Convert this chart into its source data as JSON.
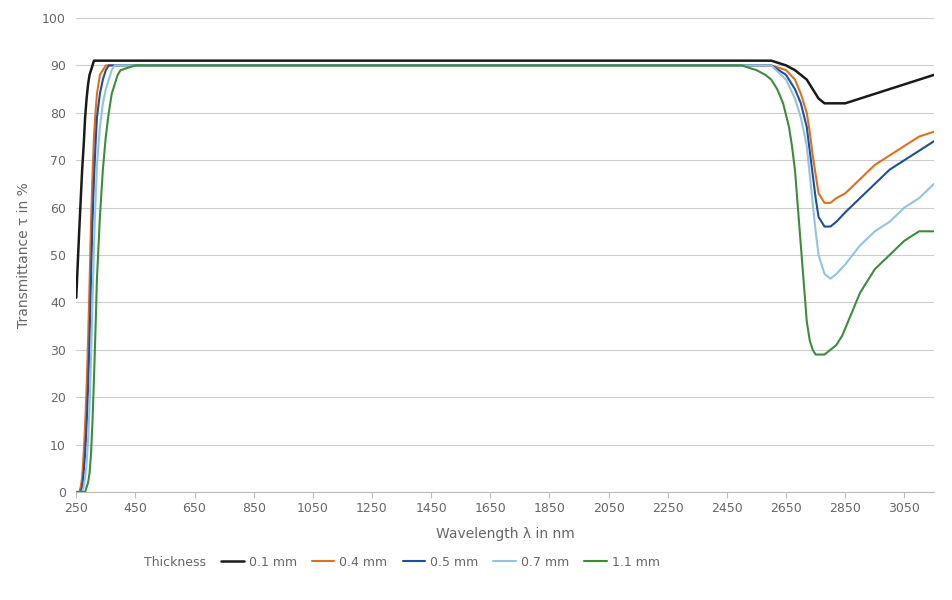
{
  "title": "",
  "xlabel": "Wavelength λ in nm",
  "ylabel": "Transmittance τ in %",
  "xlim": [
    250,
    3150
  ],
  "ylim": [
    0,
    100
  ],
  "xticks": [
    250,
    450,
    650,
    850,
    1050,
    1250,
    1450,
    1650,
    1850,
    2050,
    2250,
    2450,
    2650,
    2850,
    3050
  ],
  "yticks": [
    0,
    10,
    20,
    30,
    40,
    50,
    60,
    70,
    80,
    90,
    100
  ],
  "background_color": "#ffffff",
  "grid_color": "#cccccc",
  "legend_label": "Thickness",
  "series": [
    {
      "label": "0.1 mm",
      "color": "#1a1a1a",
      "linewidth": 1.8,
      "wavelengths": [
        250,
        260,
        270,
        275,
        280,
        285,
        290,
        295,
        300,
        305,
        310,
        315,
        320,
        330,
        340,
        350,
        360,
        370,
        380,
        390,
        400,
        450,
        500,
        600,
        800,
        1000,
        1200,
        1400,
        1600,
        1800,
        2000,
        2100,
        2200,
        2300,
        2400,
        2500,
        2600,
        2650,
        2680,
        2700,
        2720,
        2730,
        2740,
        2750,
        2760,
        2780,
        2800,
        2820,
        2850,
        2900,
        2950,
        3000,
        3050,
        3100,
        3150
      ],
      "transmittance": [
        41,
        55,
        68,
        73,
        79,
        83,
        86,
        88,
        89,
        90,
        91,
        91,
        91,
        91,
        91,
        91,
        91,
        91,
        91,
        91,
        91,
        91,
        91,
        91,
        91,
        91,
        91,
        91,
        91,
        91,
        91,
        91,
        91,
        91,
        91,
        91,
        91,
        90,
        89,
        88,
        87,
        86,
        85,
        84,
        83,
        82,
        82,
        82,
        82,
        83,
        84,
        85,
        86,
        87,
        88
      ]
    },
    {
      "label": "0.4 mm",
      "color": "#e07020",
      "linewidth": 1.5,
      "wavelengths": [
        250,
        260,
        265,
        270,
        275,
        280,
        285,
        290,
        295,
        300,
        305,
        310,
        315,
        320,
        330,
        340,
        350,
        360,
        370,
        380,
        390,
        400,
        450,
        500,
        600,
        800,
        1000,
        1200,
        1400,
        1600,
        1800,
        2000,
        2100,
        2200,
        2300,
        2400,
        2500,
        2600,
        2650,
        2680,
        2700,
        2720,
        2730,
        2740,
        2750,
        2760,
        2780,
        2800,
        2820,
        2850,
        2900,
        2950,
        3000,
        3050,
        3100,
        3150
      ],
      "transmittance": [
        0,
        0,
        1,
        3,
        8,
        14,
        22,
        32,
        44,
        57,
        67,
        75,
        80,
        84,
        88,
        89,
        90,
        90,
        90,
        90,
        90,
        90,
        90,
        90,
        90,
        90,
        90,
        90,
        90,
        90,
        90,
        90,
        90,
        90,
        90,
        90,
        90,
        90,
        89,
        87,
        84,
        80,
        76,
        71,
        67,
        63,
        61,
        61,
        62,
        63,
        66,
        69,
        71,
        73,
        75,
        76
      ]
    },
    {
      "label": "0.5 mm",
      "color": "#1f4e9c",
      "linewidth": 1.5,
      "wavelengths": [
        250,
        260,
        265,
        270,
        275,
        280,
        285,
        290,
        295,
        300,
        305,
        310,
        315,
        320,
        330,
        340,
        350,
        360,
        370,
        380,
        390,
        400,
        450,
        500,
        600,
        800,
        1000,
        1200,
        1400,
        1600,
        1800,
        2000,
        2100,
        2200,
        2300,
        2400,
        2500,
        2600,
        2650,
        2680,
        2700,
        2720,
        2730,
        2740,
        2750,
        2760,
        2780,
        2800,
        2820,
        2850,
        2900,
        2950,
        3000,
        3050,
        3100,
        3150
      ],
      "transmittance": [
        0,
        0,
        0,
        1,
        4,
        8,
        14,
        22,
        32,
        45,
        57,
        66,
        73,
        79,
        84,
        87,
        89,
        90,
        90,
        90,
        90,
        90,
        90,
        90,
        90,
        90,
        90,
        90,
        90,
        90,
        90,
        90,
        90,
        90,
        90,
        90,
        90,
        90,
        88,
        85,
        82,
        77,
        72,
        67,
        62,
        58,
        56,
        56,
        57,
        59,
        62,
        65,
        68,
        70,
        72,
        74
      ]
    },
    {
      "label": "0.7 mm",
      "color": "#91c4e0",
      "linewidth": 1.5,
      "wavelengths": [
        250,
        260,
        265,
        270,
        275,
        280,
        285,
        290,
        295,
        300,
        305,
        310,
        315,
        320,
        330,
        340,
        350,
        360,
        370,
        380,
        390,
        400,
        450,
        500,
        600,
        800,
        1000,
        1200,
        1400,
        1600,
        1800,
        2000,
        2100,
        2200,
        2300,
        2400,
        2500,
        2600,
        2650,
        2680,
        2700,
        2720,
        2730,
        2740,
        2750,
        2760,
        2780,
        2800,
        2820,
        2850,
        2900,
        2950,
        3000,
        3050,
        3100,
        3150
      ],
      "transmittance": [
        0,
        0,
        0,
        0,
        1,
        3,
        6,
        11,
        18,
        28,
        40,
        52,
        61,
        69,
        77,
        82,
        85,
        87,
        89,
        90,
        90,
        90,
        90,
        90,
        90,
        90,
        90,
        90,
        90,
        90,
        90,
        90,
        90,
        90,
        90,
        90,
        90,
        90,
        87,
        83,
        79,
        73,
        67,
        61,
        55,
        50,
        46,
        45,
        46,
        48,
        52,
        55,
        57,
        60,
        62,
        65
      ]
    },
    {
      "label": "1.1 mm",
      "color": "#3d8c3d",
      "linewidth": 1.5,
      "wavelengths": [
        250,
        260,
        265,
        270,
        275,
        280,
        285,
        290,
        295,
        300,
        305,
        310,
        315,
        320,
        330,
        340,
        350,
        360,
        370,
        380,
        390,
        400,
        450,
        500,
        600,
        800,
        1000,
        1200,
        1400,
        1600,
        1800,
        2000,
        2100,
        2200,
        2300,
        2400,
        2500,
        2550,
        2580,
        2600,
        2620,
        2640,
        2660,
        2670,
        2680,
        2690,
        2700,
        2710,
        2720,
        2730,
        2740,
        2750,
        2760,
        2780,
        2800,
        2820,
        2840,
        2860,
        2880,
        2900,
        2950,
        3000,
        3050,
        3100,
        3150
      ],
      "transmittance": [
        0,
        0,
        0,
        0,
        0,
        0,
        1,
        2,
        4,
        8,
        15,
        24,
        34,
        45,
        58,
        68,
        75,
        80,
        84,
        86,
        88,
        89,
        90,
        90,
        90,
        90,
        90,
        90,
        90,
        90,
        90,
        90,
        90,
        90,
        90,
        90,
        90,
        89,
        88,
        87,
        85,
        82,
        77,
        73,
        68,
        60,
        52,
        44,
        36,
        32,
        30,
        29,
        29,
        29,
        30,
        31,
        33,
        36,
        39,
        42,
        47,
        50,
        53,
        55,
        55
      ]
    }
  ]
}
